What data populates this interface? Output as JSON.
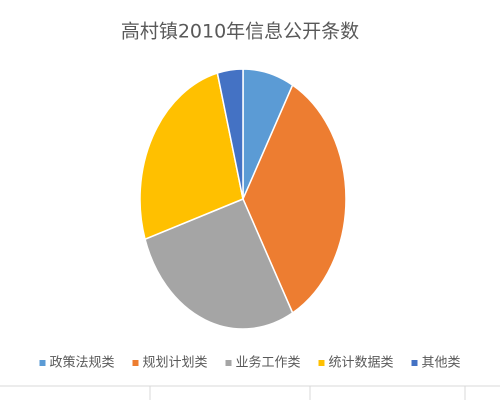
{
  "chart_data": {
    "type": "pie",
    "title": "高村镇2010年信息公开条数",
    "categories": [
      "政策法规类",
      "规划计划类",
      "业务工作类",
      "统计数据类",
      "其他类"
    ],
    "values": [
      8,
      34,
      28,
      26,
      4
    ],
    "colors": [
      "#5b9bd5",
      "#ed7d31",
      "#a5a5a5",
      "#ffc000",
      "#4472c4"
    ],
    "legend": "bottom"
  }
}
